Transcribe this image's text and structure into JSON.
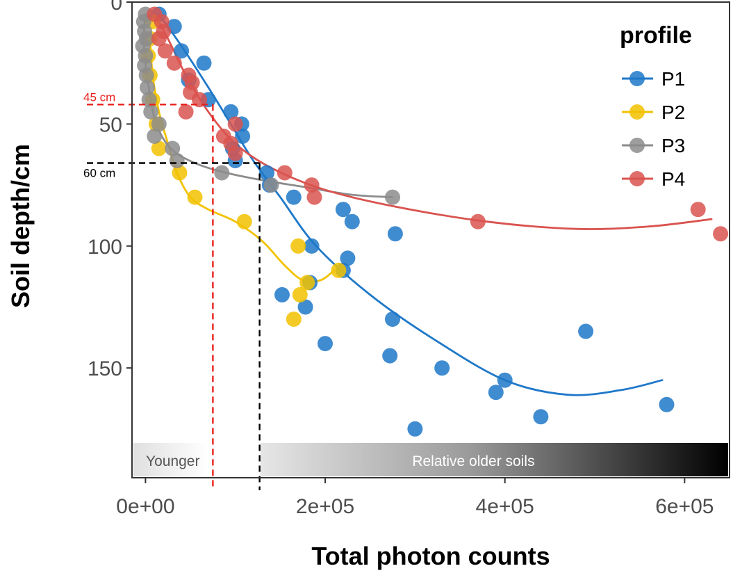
{
  "chart_data": {
    "type": "scatter",
    "title": "",
    "xlabel": "Total photon counts",
    "ylabel": "Soil depth/cm",
    "xlim": [
      -15000,
      650000
    ],
    "ylim": [
      0,
      195
    ],
    "y_reversed": true,
    "x_ticks": [
      0,
      200000,
      400000,
      600000
    ],
    "x_tick_labels": [
      "0e+00",
      "2e+05",
      "4e+05",
      "6e+05"
    ],
    "y_ticks": [
      0,
      50,
      100,
      150
    ],
    "y_tick_labels": [
      "0",
      "50",
      "100",
      "150"
    ],
    "grid": false,
    "legend": {
      "title": "profile",
      "placement": "top-right"
    },
    "series": [
      {
        "name": "P1",
        "color": "#1f78c8",
        "points": [
          [
            15000,
            5
          ],
          [
            32000,
            10
          ],
          [
            40000,
            20
          ],
          [
            65000,
            25
          ],
          [
            48000,
            32
          ],
          [
            70000,
            40
          ],
          [
            95000,
            45
          ],
          [
            107000,
            50
          ],
          [
            108000,
            55
          ],
          [
            97000,
            60
          ],
          [
            100000,
            65
          ],
          [
            135000,
            70
          ],
          [
            138000,
            75
          ],
          [
            165000,
            80
          ],
          [
            220000,
            85
          ],
          [
            230000,
            90
          ],
          [
            278000,
            95
          ],
          [
            185000,
            100
          ],
          [
            225000,
            105
          ],
          [
            220000,
            110
          ],
          [
            183000,
            115
          ],
          [
            152000,
            120
          ],
          [
            178000,
            125
          ],
          [
            275000,
            130
          ],
          [
            200000,
            140
          ],
          [
            272000,
            145
          ],
          [
            330000,
            150
          ],
          [
            400000,
            155
          ],
          [
            390000,
            160
          ],
          [
            580000,
            165
          ],
          [
            440000,
            170
          ],
          [
            300000,
            175
          ],
          [
            490000,
            135
          ]
        ],
        "trend": [
          [
            15000,
            5
          ],
          [
            40000,
            18
          ],
          [
            70000,
            35
          ],
          [
            95000,
            50
          ],
          [
            120000,
            65
          ],
          [
            150000,
            80
          ],
          [
            190000,
            100
          ],
          [
            250000,
            120
          ],
          [
            320000,
            138
          ],
          [
            400000,
            155
          ],
          [
            470000,
            161
          ],
          [
            530000,
            159
          ],
          [
            575000,
            155
          ]
        ]
      },
      {
        "name": "P2",
        "color": "#f2c200",
        "points": [
          [
            8000,
            8
          ],
          [
            5000,
            15
          ],
          [
            3000,
            22
          ],
          [
            5000,
            30
          ],
          [
            8000,
            40
          ],
          [
            12000,
            50
          ],
          [
            15000,
            60
          ],
          [
            38000,
            70
          ],
          [
            55000,
            80
          ],
          [
            110000,
            90
          ],
          [
            170000,
            100
          ],
          [
            215000,
            110
          ],
          [
            180000,
            115
          ],
          [
            172000,
            120
          ],
          [
            165000,
            130
          ]
        ],
        "trend": [
          [
            5000,
            15
          ],
          [
            8000,
            30
          ],
          [
            15000,
            45
          ],
          [
            25000,
            58
          ],
          [
            35000,
            70
          ],
          [
            50000,
            80
          ],
          [
            70000,
            85
          ],
          [
            100000,
            90
          ],
          [
            130000,
            98
          ],
          [
            155000,
            108
          ],
          [
            175000,
            114
          ],
          [
            195000,
            114
          ],
          [
            210000,
            110
          ]
        ]
      },
      {
        "name": "P3",
        "color": "#8c8c8c",
        "points": [
          [
            0,
            5
          ],
          [
            -2000,
            8
          ],
          [
            -1000,
            12
          ],
          [
            1000,
            15
          ],
          [
            -3000,
            18
          ],
          [
            0,
            22
          ],
          [
            -1000,
            26
          ],
          [
            1000,
            30
          ],
          [
            2000,
            35
          ],
          [
            4000,
            40
          ],
          [
            6000,
            45
          ],
          [
            15000,
            50
          ],
          [
            10000,
            55
          ],
          [
            30000,
            60
          ],
          [
            35000,
            65
          ],
          [
            85000,
            70
          ],
          [
            140000,
            75
          ],
          [
            275000,
            80
          ]
        ],
        "trend": [
          [
            0,
            5
          ],
          [
            -2000,
            15
          ],
          [
            0,
            25
          ],
          [
            5000,
            38
          ],
          [
            12000,
            50
          ],
          [
            28000,
            60
          ],
          [
            55000,
            66
          ],
          [
            90000,
            70
          ],
          [
            130000,
            73
          ],
          [
            180000,
            76
          ],
          [
            230000,
            79
          ],
          [
            275000,
            80
          ]
        ]
      },
      {
        "name": "P4",
        "color": "#d9534f",
        "points": [
          [
            10000,
            5
          ],
          [
            18000,
            8
          ],
          [
            20000,
            12
          ],
          [
            15000,
            15
          ],
          [
            22000,
            20
          ],
          [
            32000,
            25
          ],
          [
            48000,
            30
          ],
          [
            52000,
            33
          ],
          [
            50000,
            37
          ],
          [
            60000,
            40
          ],
          [
            45000,
            45
          ],
          [
            100000,
            50
          ],
          [
            87000,
            55
          ],
          [
            95000,
            58
          ],
          [
            100000,
            62
          ],
          [
            155000,
            70
          ],
          [
            185000,
            75
          ],
          [
            188000,
            80
          ],
          [
            370000,
            90
          ],
          [
            615000,
            85
          ],
          [
            640000,
            95
          ]
        ],
        "trend": [
          [
            10000,
            5
          ],
          [
            25000,
            15
          ],
          [
            45000,
            30
          ],
          [
            70000,
            45
          ],
          [
            100000,
            58
          ],
          [
            140000,
            68
          ],
          [
            200000,
            77
          ],
          [
            280000,
            84
          ],
          [
            380000,
            90
          ],
          [
            480000,
            93
          ],
          [
            560000,
            92
          ],
          [
            630000,
            89
          ]
        ]
      }
    ],
    "reference_lines": [
      {
        "label": "45 cm",
        "depth": 42,
        "photon": 75000,
        "color": "#e8201c"
      },
      {
        "label": "60 cm",
        "depth": 66,
        "photon": 127000,
        "color": "#000000"
      }
    ],
    "bands": [
      {
        "label": "Younger",
        "x_from": -15000,
        "x_to": 70000,
        "text_color": "#555555"
      },
      {
        "label": "Relative older soils",
        "x_from": 128000,
        "x_to": 650000,
        "text_color": "#ffffff"
      }
    ]
  }
}
